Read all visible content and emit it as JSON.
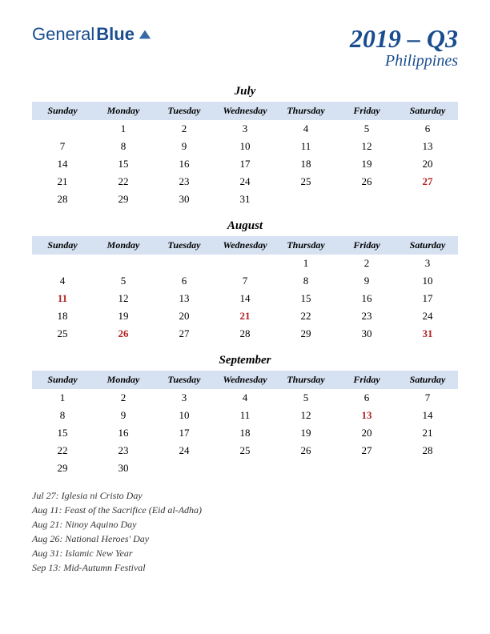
{
  "logo": {
    "part1": "General",
    "part2": "Blue"
  },
  "title": {
    "main": "2019 – Q3",
    "sub": "Philippines"
  },
  "dayHeaders": [
    "Sunday",
    "Monday",
    "Tuesday",
    "Wednesday",
    "Thursday",
    "Friday",
    "Saturday"
  ],
  "months": [
    {
      "name": "July",
      "weeks": [
        [
          "",
          "1",
          "2",
          "3",
          "4",
          "5",
          "6"
        ],
        [
          "7",
          "8",
          "9",
          "10",
          "11",
          "12",
          "13"
        ],
        [
          "14",
          "15",
          "16",
          "17",
          "18",
          "19",
          "20"
        ],
        [
          "21",
          "22",
          "23",
          "24",
          "25",
          "26",
          "27"
        ],
        [
          "28",
          "29",
          "30",
          "31",
          "",
          "",
          ""
        ]
      ],
      "holidays": [
        "27"
      ]
    },
    {
      "name": "August",
      "weeks": [
        [
          "",
          "",
          "",
          "",
          "1",
          "2",
          "3"
        ],
        [
          "4",
          "5",
          "6",
          "7",
          "8",
          "9",
          "10"
        ],
        [
          "11",
          "12",
          "13",
          "14",
          "15",
          "16",
          "17"
        ],
        [
          "18",
          "19",
          "20",
          "21",
          "22",
          "23",
          "24"
        ],
        [
          "25",
          "26",
          "27",
          "28",
          "29",
          "30",
          "31"
        ]
      ],
      "holidays": [
        "11",
        "21",
        "26",
        "31"
      ]
    },
    {
      "name": "September",
      "weeks": [
        [
          "1",
          "2",
          "3",
          "4",
          "5",
          "6",
          "7"
        ],
        [
          "8",
          "9",
          "10",
          "11",
          "12",
          "13",
          "14"
        ],
        [
          "15",
          "16",
          "17",
          "18",
          "19",
          "20",
          "21"
        ],
        [
          "22",
          "23",
          "24",
          "25",
          "26",
          "27",
          "28"
        ],
        [
          "29",
          "30",
          "",
          "",
          "",
          "",
          ""
        ]
      ],
      "holidays": [
        "13"
      ]
    }
  ],
  "holidayList": [
    "Jul 27: Iglesia ni Cristo Day",
    "Aug 11: Feast of the Sacrifice (Eid al-Adha)",
    "Aug 21: Ninoy Aquino Day",
    "Aug 26: National Heroes' Day",
    "Aug 31: Islamic New Year",
    "Sep 13: Mid-Autumn Festival"
  ],
  "colors": {
    "brand": "#1a4d8f",
    "headerBg": "#d6e2f2",
    "holiday": "#b22222",
    "background": "#ffffff"
  }
}
